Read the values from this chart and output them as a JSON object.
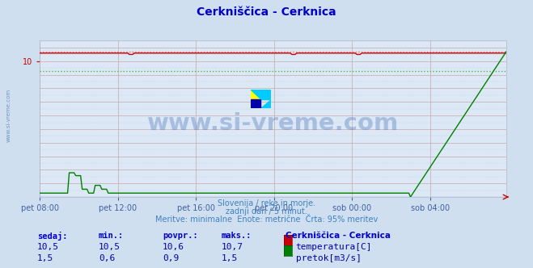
{
  "title": "Cerkniščica - Cerknica",
  "title_color": "#0000cc",
  "bg_color": "#d0dff0",
  "plot_bg_color": "#dce8f5",
  "grid_color_v": "#b0bcd0",
  "grid_color_h": "#c8a8a8",
  "watermark_text": "www.si-vreme.com",
  "watermark_color": "#3060b0",
  "watermark_alpha": 0.3,
  "subtitle_lines": [
    "Slovenija / reke in morje.",
    "zadnji dan / 5 minut.",
    "Meritve: minimalne  Enote: metrične  Črta: 95% meritev"
  ],
  "subtitle_color": "#4080c0",
  "xlabel_ticks": [
    "pet 08:00",
    "pet 12:00",
    "pet 16:00",
    "pet 20:00",
    "sob 00:00",
    "sob 04:00"
  ],
  "xlabel_color": "#4060a0",
  "temp_color": "#cc0000",
  "temp_95_color": "#ff6666",
  "flow_color": "#008000",
  "flow_95_color": "#44bb44",
  "flow_base_color": "#0000bb",
  "temp_min": 10.5,
  "temp_max": 10.7,
  "temp_avg": 10.6,
  "temp_current": 10.5,
  "flow_min": 0.6,
  "flow_max": 1.5,
  "flow_avg": 0.9,
  "flow_current": 1.5,
  "ylim_temp": [
    0.0,
    11.55
  ],
  "ylim_flow": [
    0.0,
    1.617
  ],
  "n_points": 288,
  "legend_station": "Cerkniščica - Cerknica",
  "legend_temp": "temperatura[C]",
  "legend_flow": "pretok[m3/s]",
  "table_headers": [
    "sedaj:",
    "min.:",
    "povpr.:",
    "maks.:"
  ],
  "table_color": "#0000aa",
  "table_header_color": "#0000cc",
  "temp_box_color": "#cc0000",
  "flow_box_color": "#008000"
}
